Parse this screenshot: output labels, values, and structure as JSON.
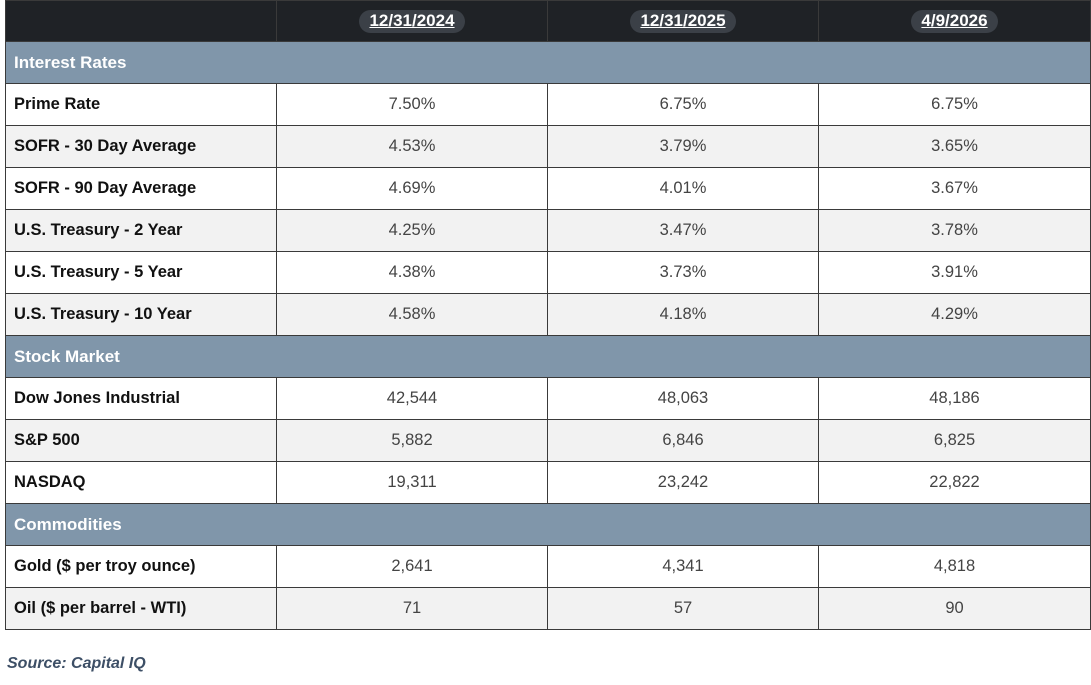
{
  "header": {
    "dates": [
      "12/31/2024",
      "12/31/2025",
      "4/9/2026"
    ]
  },
  "sections": [
    {
      "title": "Interest Rates",
      "rows": [
        {
          "label": "Prime Rate",
          "values": [
            "7.50%",
            "6.75%",
            "6.75%"
          ]
        },
        {
          "label": "SOFR - 30 Day Average",
          "values": [
            "4.53%",
            "3.79%",
            "3.65%"
          ]
        },
        {
          "label": "SOFR - 90 Day Average",
          "values": [
            "4.69%",
            "4.01%",
            "3.67%"
          ]
        },
        {
          "label": "U.S. Treasury - 2 Year",
          "values": [
            "4.25%",
            "3.47%",
            "3.78%"
          ]
        },
        {
          "label": "U.S. Treasury - 5 Year",
          "values": [
            "4.38%",
            "3.73%",
            "3.91%"
          ]
        },
        {
          "label": "U.S. Treasury - 10 Year",
          "values": [
            "4.58%",
            "4.18%",
            "4.29%"
          ]
        }
      ]
    },
    {
      "title": "Stock Market",
      "rows": [
        {
          "label": "Dow Jones Industrial",
          "values": [
            "42,544",
            "48,063",
            "48,186"
          ]
        },
        {
          "label": "S&P 500",
          "values": [
            "5,882",
            "6,846",
            "6,825"
          ]
        },
        {
          "label": "NASDAQ",
          "values": [
            "19,311",
            "23,242",
            "22,822"
          ]
        }
      ]
    },
    {
      "title": "Commodities",
      "rows": [
        {
          "label": "Gold ($ per troy ounce)",
          "values": [
            "2,641",
            "4,341",
            "4,818"
          ]
        },
        {
          "label": "Oil ($ per barrel - WTI)",
          "values": [
            "71",
            "57",
            "90"
          ]
        }
      ]
    }
  ],
  "source": "Source: Capital IQ",
  "colors": {
    "header_bg": "#1f2226",
    "section_bg": "#8096aa",
    "alt_row_bg": "#f2f2f2",
    "source_text": "#3d4f66"
  }
}
